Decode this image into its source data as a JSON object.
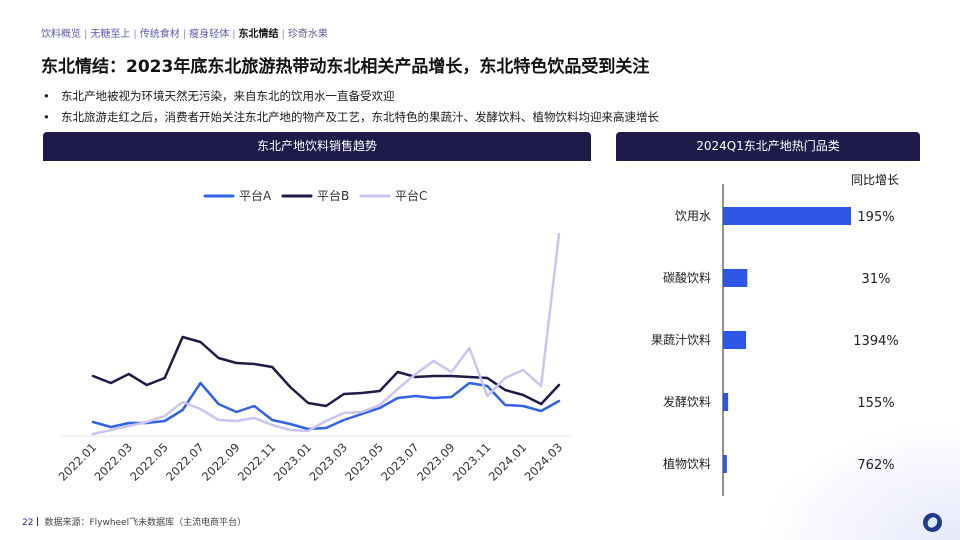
{
  "breadcrumb": [
    "饮料概览",
    "无糖至上",
    "传统食材",
    "瘦身轻体",
    "东北情结",
    "珍奇水果"
  ],
  "breadcrumb_active_index": 4,
  "title": "东北情结：2023年底东北旅游热带动东北相关产品增长，东北特色饮品受到关注",
  "bullets": [
    "东北产地被视为环境天然无污染，来自东北的饮用水一直备受欢迎",
    "东北旅游走红之后，消费者开始关注东北产地的物产及工艺，东北特色的果蔬汁、发酵饮料、植物饮料均迎来高速增长"
  ],
  "bullet_symbol": "•",
  "footer": {
    "page": "22",
    "source": "数据来源：Flywheel飞未数据库（主流电商平台）"
  },
  "colors": {
    "header_bg": "#1e1b4b",
    "series_a": "#2f63e8",
    "series_b": "#1e1b4b",
    "series_c": "#c9c4f2",
    "bar": "#2f55e6"
  },
  "chart_data": [
    {
      "type": "line",
      "title": "东北产地饮料销售趋势",
      "x": [
        "2022.01",
        "2022.02",
        "2022.03",
        "2022.04",
        "2022.05",
        "2022.06",
        "2022.07",
        "2022.08",
        "2022.09",
        "2022.10",
        "2022.11",
        "2022.12",
        "2023.01",
        "2023.02",
        "2023.03",
        "2023.04",
        "2023.05",
        "2023.06",
        "2023.07",
        "2023.08",
        "2023.09",
        "2023.10",
        "2023.11",
        "2023.12",
        "2024.01",
        "2024.02",
        "2024.03"
      ],
      "xticks": [
        "2022.01",
        "2022.03",
        "2022.05",
        "2022.07",
        "2022.09",
        "2022.11",
        "2023.01",
        "2023.03",
        "2023.05",
        "2023.07",
        "2023.09",
        "2023.11",
        "2024.01",
        "2024.03"
      ],
      "series": [
        {
          "name": "平台A",
          "values": [
            12,
            7,
            11,
            11,
            13,
            24,
            51,
            30,
            22,
            28,
            14,
            10,
            5,
            6,
            14,
            20,
            26,
            36,
            38,
            36,
            37,
            51,
            48,
            29,
            28,
            23,
            33
          ]
        },
        {
          "name": "平台B",
          "values": [
            58,
            51,
            60,
            49,
            56,
            97,
            92,
            76,
            71,
            70,
            67,
            47,
            31,
            28,
            40,
            41,
            43,
            62,
            57,
            58,
            58,
            57,
            56,
            44,
            39,
            30,
            49
          ]
        },
        {
          "name": "平台C",
          "values": [
            0,
            4,
            8,
            12,
            18,
            32,
            25,
            14,
            13,
            16,
            9,
            4,
            3,
            13,
            21,
            22,
            29,
            45,
            60,
            73,
            62,
            86,
            38,
            56,
            64,
            48,
            200
          ]
        }
      ],
      "ylim": [
        0,
        200
      ],
      "legend": "top-center",
      "grid": false
    },
    {
      "type": "bar",
      "orientation": "horizontal",
      "title": "2024Q1东北产地热门品类",
      "label_column_header": "同比增长",
      "categories": [
        "饮用水",
        "碳酸饮料",
        "果蔬汁饮料",
        "发酵饮料",
        "植物饮料"
      ],
      "values": [
        100,
        19,
        18,
        4,
        3
      ],
      "growth_labels": [
        "195%",
        "31%",
        "1394%",
        "155%",
        "762%"
      ]
    }
  ]
}
